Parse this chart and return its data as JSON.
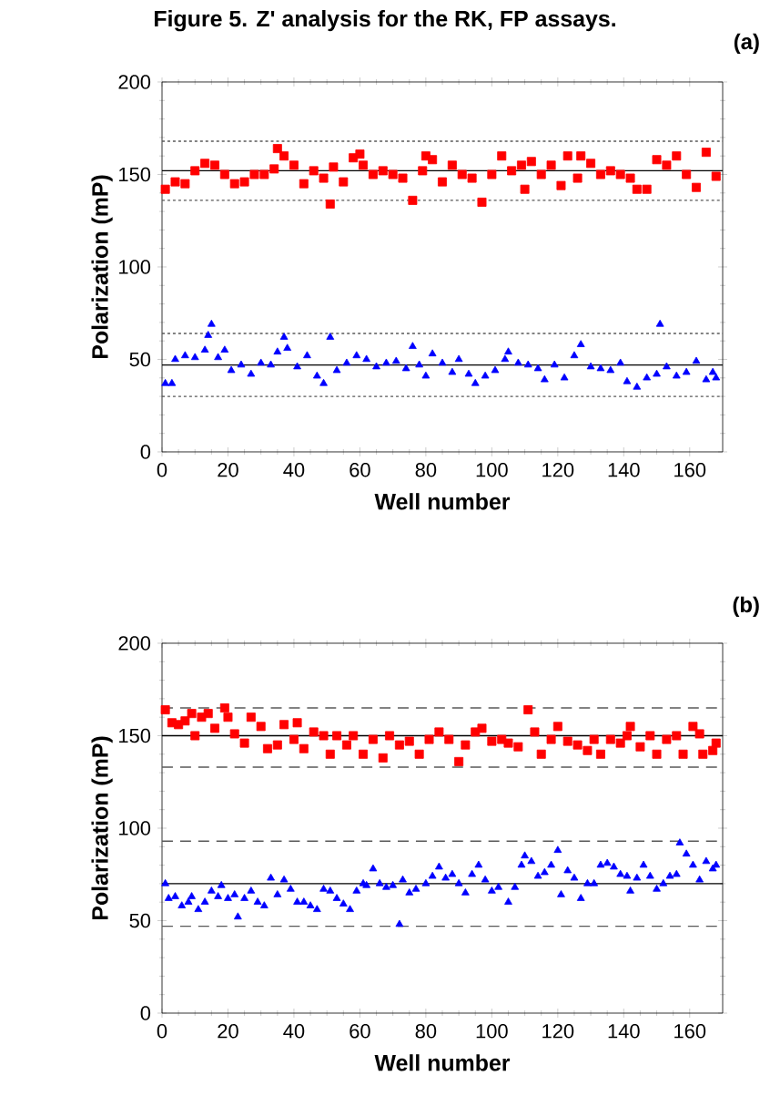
{
  "chart_data": [
    {
      "type": "scatter",
      "title": "Figure 5. Z' analysis for the RK, FP assays.",
      "xlabel": "Well number",
      "ylabel": "Polarization (mP)",
      "annotations": [
        "(a)"
      ],
      "xlim": [
        0,
        170
      ],
      "ylim": [
        0,
        200
      ],
      "xticks": [
        0,
        20,
        40,
        60,
        80,
        100,
        120,
        140,
        160
      ],
      "yticks": [
        0,
        50,
        100,
        150,
        200
      ],
      "grid": false,
      "series": [
        {
          "color": "#ff0000",
          "marker": "square",
          "x": [
            1,
            4,
            7,
            10,
            13,
            16,
            19,
            22,
            25,
            28,
            31,
            34,
            35,
            37,
            40,
            43,
            46,
            49,
            51,
            52,
            55,
            58,
            60,
            61,
            64,
            67,
            70,
            73,
            76,
            79,
            80,
            82,
            85,
            88,
            91,
            94,
            97,
            100,
            103,
            106,
            109,
            110,
            112,
            115,
            118,
            121,
            123,
            126,
            127,
            130,
            133,
            136,
            139,
            142,
            144,
            147,
            150,
            153,
            156,
            159,
            162,
            165,
            168
          ],
          "values": [
            142,
            146,
            145,
            152,
            156,
            155,
            150,
            145,
            146,
            150,
            150,
            153,
            164,
            160,
            155,
            145,
            152,
            148,
            134,
            154,
            146,
            159,
            161,
            155,
            150,
            152,
            150,
            148,
            136,
            152,
            160,
            158,
            146,
            155,
            150,
            148,
            135,
            150,
            160,
            152,
            155,
            142,
            157,
            150,
            155,
            144,
            160,
            148,
            160,
            156,
            150,
            152,
            150,
            148,
            142,
            142,
            158,
            155,
            160,
            150,
            143,
            162,
            149
          ]
        },
        {
          "color": "#0000ff",
          "marker": "triangle",
          "x": [
            1,
            3,
            4,
            7,
            10,
            13,
            14,
            15,
            17,
            19,
            21,
            24,
            27,
            30,
            33,
            35,
            37,
            38,
            41,
            44,
            47,
            49,
            51,
            53,
            56,
            59,
            62,
            65,
            68,
            71,
            74,
            76,
            78,
            80,
            82,
            85,
            88,
            90,
            93,
            95,
            98,
            101,
            104,
            105,
            108,
            111,
            114,
            116,
            119,
            122,
            125,
            127,
            130,
            133,
            136,
            139,
            141,
            144,
            147,
            150,
            151,
            153,
            156,
            159,
            162,
            165,
            167,
            168
          ],
          "values": [
            37,
            37,
            50,
            52,
            51,
            55,
            63,
            69,
            51,
            55,
            44,
            47,
            42,
            48,
            47,
            54,
            62,
            56,
            46,
            52,
            41,
            37,
            62,
            44,
            48,
            52,
            50,
            46,
            48,
            49,
            45,
            57,
            47,
            41,
            53,
            48,
            43,
            50,
            42,
            37,
            41,
            44,
            50,
            54,
            48,
            47,
            45,
            39,
            47,
            40,
            52,
            58,
            46,
            45,
            44,
            48,
            38,
            35,
            40,
            42,
            69,
            46,
            41,
            43,
            49,
            39,
            43,
            40
          ]
        }
      ],
      "ref_lines": [
        {
          "axis": "y",
          "value": 152,
          "line_style": "solid"
        },
        {
          "axis": "y",
          "value": 168,
          "line_style": "dotted"
        },
        {
          "axis": "y",
          "value": 136,
          "line_style": "dotted"
        },
        {
          "axis": "y",
          "value": 47,
          "line_style": "solid"
        },
        {
          "axis": "y",
          "value": 64,
          "line_style": "dotted"
        },
        {
          "axis": "y",
          "value": 30,
          "line_style": "dotted"
        }
      ]
    },
    {
      "type": "scatter",
      "xlabel": "Well number",
      "ylabel": "Polarization (mP)",
      "annotations": [
        "(b)"
      ],
      "xlim": [
        0,
        170
      ],
      "ylim": [
        0,
        200
      ],
      "xticks": [
        0,
        20,
        40,
        60,
        80,
        100,
        120,
        140,
        160
      ],
      "yticks": [
        0,
        50,
        100,
        150,
        200
      ],
      "grid": false,
      "series": [
        {
          "color": "#ff0000",
          "marker": "square",
          "x": [
            1,
            3,
            5,
            7,
            9,
            10,
            12,
            14,
            16,
            19,
            20,
            22,
            25,
            27,
            30,
            32,
            35,
            37,
            40,
            41,
            43,
            46,
            49,
            51,
            53,
            56,
            58,
            61,
            64,
            67,
            69,
            72,
            75,
            78,
            81,
            84,
            87,
            90,
            92,
            95,
            97,
            100,
            103,
            105,
            108,
            111,
            113,
            115,
            118,
            120,
            123,
            126,
            129,
            131,
            133,
            136,
            139,
            141,
            142,
            145,
            148,
            150,
            153,
            156,
            158,
            161,
            163,
            164,
            167,
            168
          ],
          "values": [
            164,
            157,
            156,
            158,
            162,
            150,
            160,
            162,
            154,
            165,
            160,
            151,
            146,
            160,
            155,
            143,
            145,
            156,
            148,
            157,
            143,
            152,
            150,
            140,
            150,
            145,
            150,
            140,
            148,
            138,
            150,
            145,
            147,
            140,
            148,
            152,
            148,
            136,
            145,
            152,
            154,
            147,
            148,
            146,
            144,
            164,
            152,
            140,
            148,
            155,
            147,
            145,
            142,
            148,
            140,
            148,
            146,
            150,
            155,
            144,
            150,
            140,
            148,
            150,
            140,
            155,
            151,
            140,
            142,
            146
          ]
        },
        {
          "color": "#0000ff",
          "marker": "triangle",
          "x": [
            1,
            2,
            4,
            6,
            8,
            9,
            11,
            13,
            15,
            17,
            18,
            20,
            22,
            23,
            25,
            27,
            29,
            31,
            33,
            35,
            37,
            39,
            41,
            43,
            45,
            47,
            49,
            51,
            53,
            55,
            57,
            59,
            61,
            62,
            64,
            66,
            68,
            70,
            72,
            73,
            75,
            77,
            80,
            82,
            84,
            86,
            88,
            90,
            92,
            94,
            96,
            98,
            100,
            102,
            105,
            107,
            109,
            110,
            112,
            114,
            116,
            118,
            120,
            121,
            123,
            125,
            127,
            129,
            131,
            133,
            135,
            137,
            139,
            141,
            142,
            144,
            146,
            148,
            150,
            152,
            154,
            156,
            157,
            159,
            161,
            163,
            165,
            167,
            168
          ],
          "values": [
            70,
            62,
            63,
            58,
            60,
            63,
            56,
            60,
            66,
            63,
            69,
            62,
            64,
            52,
            62,
            66,
            60,
            58,
            73,
            64,
            72,
            67,
            60,
            60,
            58,
            56,
            67,
            66,
            62,
            59,
            56,
            66,
            70,
            69,
            78,
            70,
            68,
            69,
            48,
            72,
            65,
            67,
            70,
            74,
            79,
            73,
            75,
            70,
            65,
            75,
            80,
            72,
            66,
            68,
            60,
            68,
            80,
            85,
            82,
            74,
            76,
            80,
            88,
            64,
            77,
            73,
            62,
            70,
            70,
            80,
            81,
            79,
            75,
            74,
            66,
            73,
            80,
            74,
            67,
            70,
            74,
            75,
            92,
            86,
            80,
            72,
            82,
            78,
            80
          ]
        }
      ],
      "ref_lines": [
        {
          "axis": "y",
          "value": 150,
          "line_style": "solid"
        },
        {
          "axis": "y",
          "value": 165,
          "line_style": "dashed"
        },
        {
          "axis": "y",
          "value": 133,
          "line_style": "dashed"
        },
        {
          "axis": "y",
          "value": 70,
          "line_style": "solid"
        },
        {
          "axis": "y",
          "value": 93,
          "line_style": "dashed"
        },
        {
          "axis": "y",
          "value": 47,
          "line_style": "dashed"
        }
      ]
    }
  ]
}
